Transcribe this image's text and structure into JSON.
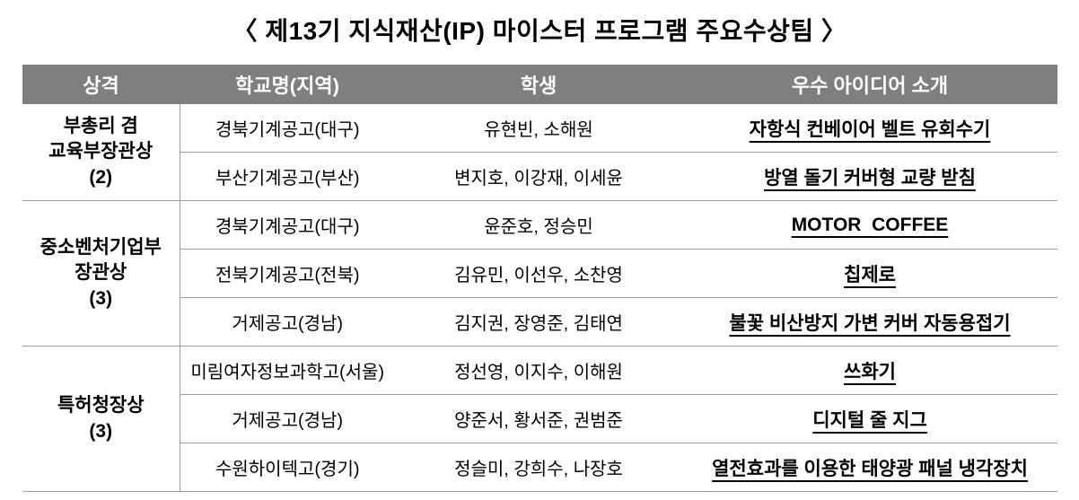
{
  "title": "〈 제13기 지식재산(IP) 마이스터 프로그램 주요수상팀 〉",
  "colors": {
    "header_bg": "#7f7f7f",
    "header_text": "#ffffff",
    "grid_line": "#9b9b9b",
    "body_text": "#000000"
  },
  "table": {
    "headers": [
      "상격",
      "학교명(지역)",
      "학생",
      "우수 아이디어 소개"
    ],
    "groups": [
      {
        "award": "부총리 겸\n교육부장관상\n(2)",
        "rows": [
          {
            "school": "경북기계공고(대구)",
            "students": "유현빈, 소해원",
            "idea": "자항식 컨베이어 벨트 유회수기"
          },
          {
            "school": "부산기계공고(부산)",
            "students": "변지호, 이강재, 이세윤",
            "idea": "방열 돌기 커버형 교량 받침"
          }
        ]
      },
      {
        "award": "중소벤처기업부\n장관상\n(3)",
        "rows": [
          {
            "school": "경북기계공고(대구)",
            "students": "윤준호, 정승민",
            "idea": "MOTOR  COFFEE"
          },
          {
            "school": "전북기계공고(전북)",
            "students": "김유민, 이선우, 소찬영",
            "idea": "칩제로"
          },
          {
            "school": "거제공고(경남)",
            "students": "김지권, 장영준, 김태연",
            "idea": "불꽃 비산방지 가변 커버 자동용접기"
          }
        ]
      },
      {
        "award": "특허청장상\n(3)",
        "rows": [
          {
            "school": "미림여자정보과학고(서울)",
            "students": "정선영, 이지수, 이해원",
            "idea": "쓰화기"
          },
          {
            "school": "거제공고(경남)",
            "students": "양준서, 황서준, 권범준",
            "idea": "디지털 줄 지그"
          },
          {
            "school": "수원하이텍고(경기)",
            "students": "정슬미, 강희수, 나장호",
            "idea": "열전효과를 이용한 태양광 패널 냉각장치"
          }
        ]
      }
    ]
  }
}
